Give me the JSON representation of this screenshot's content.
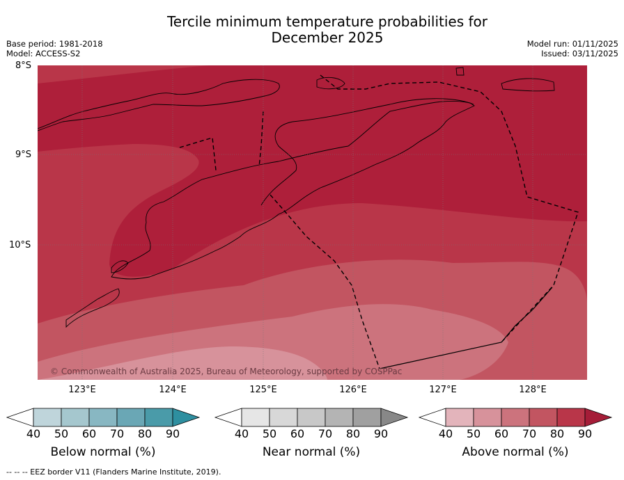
{
  "title_line1": "Tercile minimum temperature probabilities for",
  "title_line2": "December 2025",
  "base_period": "Base period: 1981-2018",
  "model": "Model: ACCESS-S2",
  "model_run": "Model run: 01/11/2025",
  "issued": "Issued: 03/11/2025",
  "lat_labels": [
    "8°S",
    "9°S",
    "10°S"
  ],
  "lon_labels": [
    "123°E",
    "124°E",
    "125°E",
    "126°E",
    "127°E",
    "128°E"
  ],
  "copyright": "© Commonwealth of Australia 2025, Bureau of Meteorology, supported by COSPPac",
  "colorbars": [
    {
      "label": "Below normal (%)",
      "ticks": [
        "40",
        "50",
        "60",
        "70",
        "80",
        "90"
      ],
      "colors": [
        "#bfd5db",
        "#a5c7ce",
        "#88b7c2",
        "#6aa7b5",
        "#4a9ba9",
        "#2e8fa0"
      ]
    },
    {
      "label": "Near normal (%)",
      "ticks": [
        "40",
        "50",
        "60",
        "70",
        "80",
        "90"
      ],
      "colors": [
        "#e6e6e6",
        "#d8d8d8",
        "#c8c8c8",
        "#b4b4b4",
        "#a0a0a0",
        "#888888"
      ]
    },
    {
      "label": "Above normal (%)",
      "ticks": [
        "40",
        "50",
        "60",
        "70",
        "80",
        "90"
      ],
      "colors": [
        "#e3b4bb",
        "#d7929b",
        "#cc737d",
        "#c25561",
        "#b93649",
        "#a51d38"
      ]
    }
  ],
  "footer": "--  --  -- EEZ border V11 (Flanders Marine Institute, 2019)."
}
